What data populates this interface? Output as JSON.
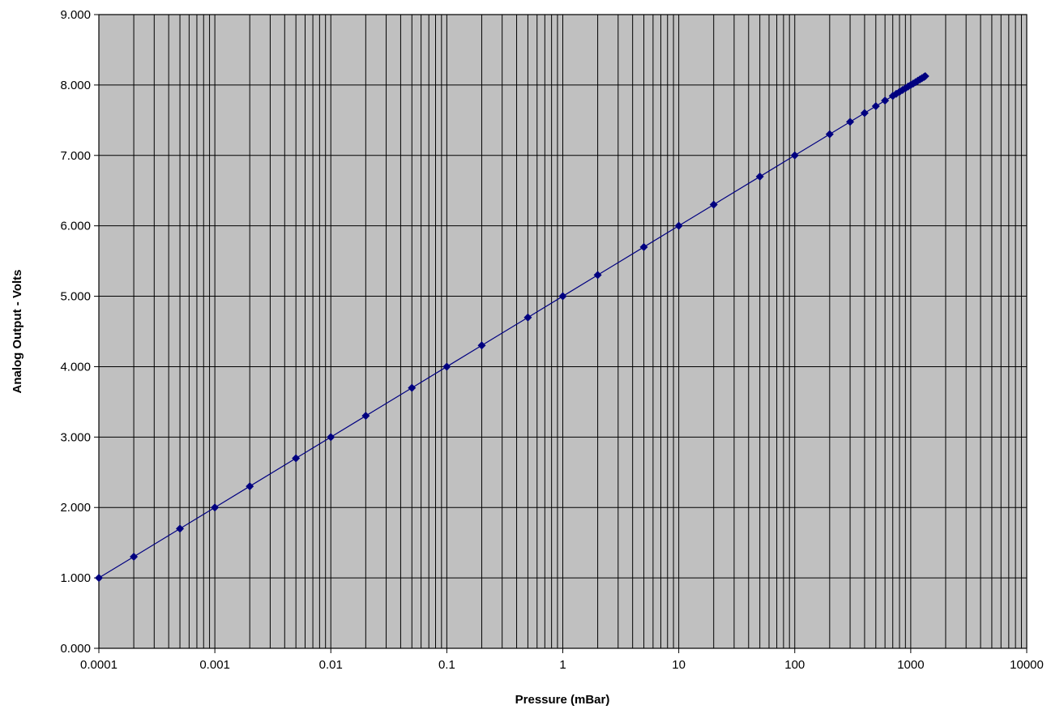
{
  "chart_data": {
    "type": "scatter",
    "title": "",
    "xlabel": "Pressure (mBar)",
    "ylabel": "Analog Output - Volts",
    "xscale": "log",
    "xlim": [
      0.0001,
      10000
    ],
    "ylim": [
      0,
      9
    ],
    "grid": true,
    "legend": "none",
    "x_ticks": [
      "0.0001",
      "0.001",
      "0.01",
      "0.1",
      "1",
      "10",
      "100",
      "1000",
      "10000"
    ],
    "y_ticks": [
      "0.000",
      "1.000",
      "2.000",
      "3.000",
      "4.000",
      "5.000",
      "6.000",
      "7.000",
      "8.000",
      "9.000"
    ],
    "series": [
      {
        "x": [
          0.0001,
          0.0002,
          0.0005,
          0.001,
          0.002,
          0.005,
          0.01,
          0.02,
          0.05,
          0.1,
          0.2,
          0.5,
          1,
          2,
          5,
          10,
          20,
          50,
          100,
          200,
          300,
          400,
          500,
          600,
          700,
          750,
          800,
          850,
          900,
          950,
          1000,
          1050,
          1100,
          1150,
          1200,
          1250,
          1300,
          1333
        ],
        "y": [
          1.0,
          1.301,
          1.699,
          2.0,
          2.301,
          2.699,
          3.0,
          3.301,
          3.699,
          4.0,
          4.301,
          4.699,
          5.0,
          5.301,
          5.699,
          6.0,
          6.301,
          6.699,
          7.0,
          7.301,
          7.477,
          7.602,
          7.699,
          7.778,
          7.845,
          7.875,
          7.903,
          7.929,
          7.954,
          7.978,
          8.0,
          8.021,
          8.041,
          8.061,
          8.079,
          8.097,
          8.114,
          8.125
        ]
      }
    ],
    "colors": {
      "plot_background": "#c0c0c0",
      "grid": "#000000",
      "series": "#000080"
    }
  }
}
